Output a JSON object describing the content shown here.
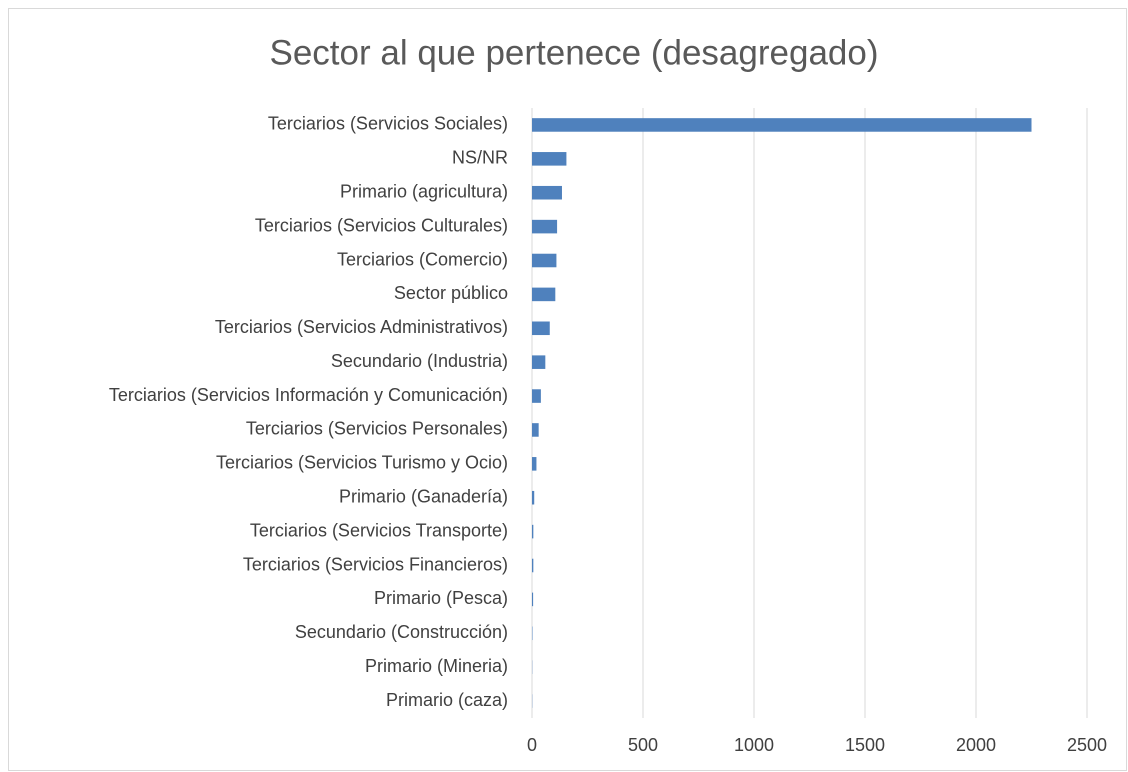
{
  "chart_data": {
    "type": "barh",
    "title": "Sector al que pertenece (desagregado)",
    "categories": [
      "Terciarios (Servicios Sociales)",
      "NS/NR",
      "Primario (agricultura)",
      "Terciarios (Servicios Culturales)",
      "Terciarios (Comercio)",
      "Sector público",
      "Terciarios (Servicios Administrativos)",
      "Secundario (Industria)",
      "Terciarios (Servicios Información y Comunicación)",
      "Terciarios (Servicios Personales)",
      "Terciarios (Servicios Turismo y Ocio)",
      "Primario (Ganadería)",
      "Terciarios (Servicios Transporte)",
      "Terciarios (Servicios Financieros)",
      "Primario (Pesca)",
      "Secundario (Construcción)",
      "Primario (Mineria)",
      "Primario (caza)"
    ],
    "values": [
      2250,
      155,
      135,
      113,
      110,
      105,
      80,
      60,
      40,
      30,
      20,
      10,
      6,
      6,
      5,
      2,
      1,
      1
    ],
    "color": "#4f81bd",
    "xlim": [
      0,
      2500
    ],
    "xticks": [
      0,
      500,
      1000,
      1500,
      2000,
      2500
    ],
    "grid": true
  }
}
